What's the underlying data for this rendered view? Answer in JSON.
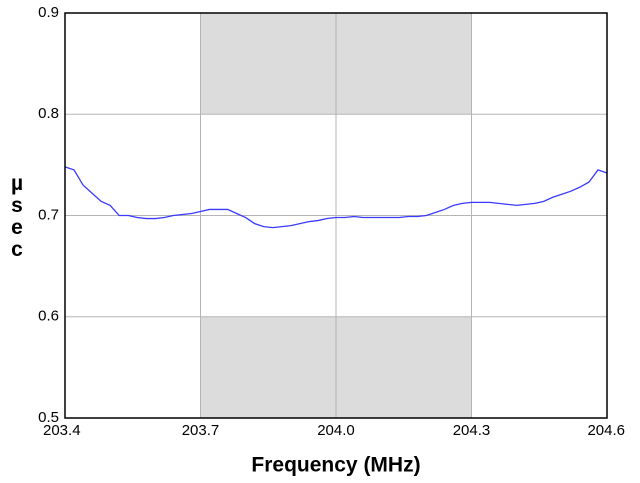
{
  "chart_data": {
    "type": "line",
    "x_label": "Frequency (MHz)",
    "y_label": "µsec",
    "color": "#3a3aff",
    "x": [
      203.4,
      203.42,
      203.44,
      203.46,
      203.48,
      203.5,
      203.52,
      203.54,
      203.56,
      203.58,
      203.6,
      203.62,
      203.64,
      203.66,
      203.68,
      203.7,
      203.72,
      203.74,
      203.76,
      203.78,
      203.8,
      203.82,
      203.84,
      203.86,
      203.88,
      203.9,
      203.92,
      203.94,
      203.96,
      203.98,
      204.0,
      204.02,
      204.04,
      204.06,
      204.08,
      204.1,
      204.12,
      204.14,
      204.16,
      204.18,
      204.2,
      204.22,
      204.24,
      204.26,
      204.28,
      204.3,
      204.32,
      204.34,
      204.36,
      204.38,
      204.4,
      204.42,
      204.44,
      204.46,
      204.48,
      204.5,
      204.52,
      204.54,
      204.56,
      204.58,
      204.6
    ],
    "values": [
      0.748,
      0.745,
      0.73,
      0.722,
      0.714,
      0.71,
      0.7,
      0.7,
      0.698,
      0.697,
      0.697,
      0.698,
      0.7,
      0.701,
      0.702,
      0.704,
      0.706,
      0.706,
      0.706,
      0.702,
      0.698,
      0.692,
      0.689,
      0.688,
      0.689,
      0.69,
      0.692,
      0.694,
      0.695,
      0.697,
      0.698,
      0.698,
      0.699,
      0.698,
      0.698,
      0.698,
      0.698,
      0.698,
      0.699,
      0.699,
      0.7,
      0.703,
      0.706,
      0.71,
      0.712,
      0.713,
      0.713,
      0.713,
      0.712,
      0.711,
      0.71,
      0.711,
      0.712,
      0.714,
      0.718,
      0.721,
      0.724,
      0.728,
      0.733,
      0.745,
      0.742
    ],
    "xlim": [
      203.4,
      204.6
    ],
    "ylim": [
      0.5,
      0.9
    ],
    "xticks": [
      203.4,
      203.7,
      {
        "value": 204,
        "label": "204.0"
      },
      204.3,
      204.6
    ],
    "yticks": [
      0.5,
      0.6,
      0.7,
      0.8,
      0.9
    ],
    "grid": true,
    "shaded_regions": [
      {
        "x": [
          203.7,
          204.3
        ],
        "y": [
          0.8,
          0.9
        ]
      },
      {
        "x": [
          203.7,
          204.3
        ],
        "y": [
          0.5,
          0.6
        ]
      }
    ]
  }
}
